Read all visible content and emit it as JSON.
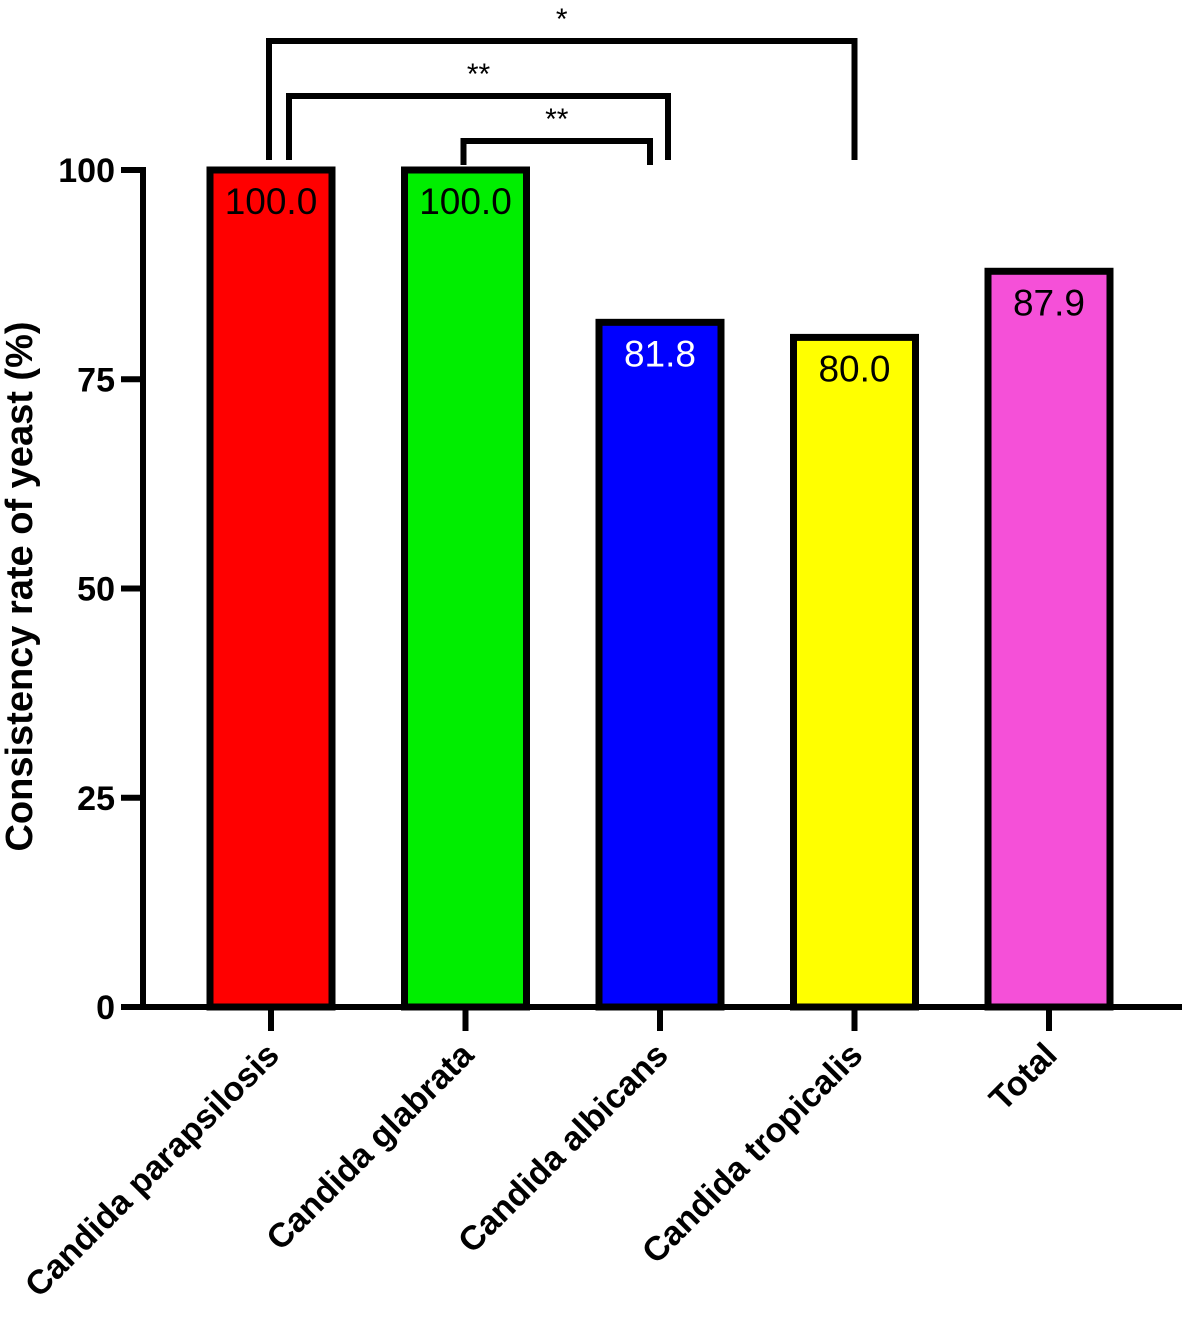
{
  "chart_data": {
    "type": "bar",
    "title": "",
    "xlabel": "",
    "ylabel": "Consistency rate of yeast (%)",
    "ylim": [
      0,
      100
    ],
    "yticks": [
      0,
      25,
      50,
      75,
      100
    ],
    "yticklabels": [
      "0",
      "25",
      "50",
      "75",
      "100"
    ],
    "grid": false,
    "categories": [
      "Candida parapsilosis",
      "Candida glabrata",
      "Candida albicans",
      "Candida tropicalis",
      "Total"
    ],
    "values": [
      100.0,
      100.0,
      81.8,
      80.0,
      87.9
    ],
    "data_labels": [
      "100.0",
      "100.0",
      "81.8",
      "80.0",
      "87.9"
    ],
    "bar_colors": [
      "#ff0000",
      "#00ee00",
      "#0000ff",
      "#ffff00",
      "#f550d8"
    ],
    "data_label_colors": [
      "#000000",
      "#000000",
      "#ffffff",
      "#000000",
      "#000000"
    ],
    "significance": [
      {
        "from": "Candida parapsilosis",
        "to": "Candida tropicalis",
        "label": "*"
      },
      {
        "from": "Candida parapsilosis",
        "to": "Candida albicans",
        "label": "**"
      },
      {
        "from": "Candida glabrata",
        "to": "Candida albicans",
        "label": "**"
      }
    ]
  }
}
